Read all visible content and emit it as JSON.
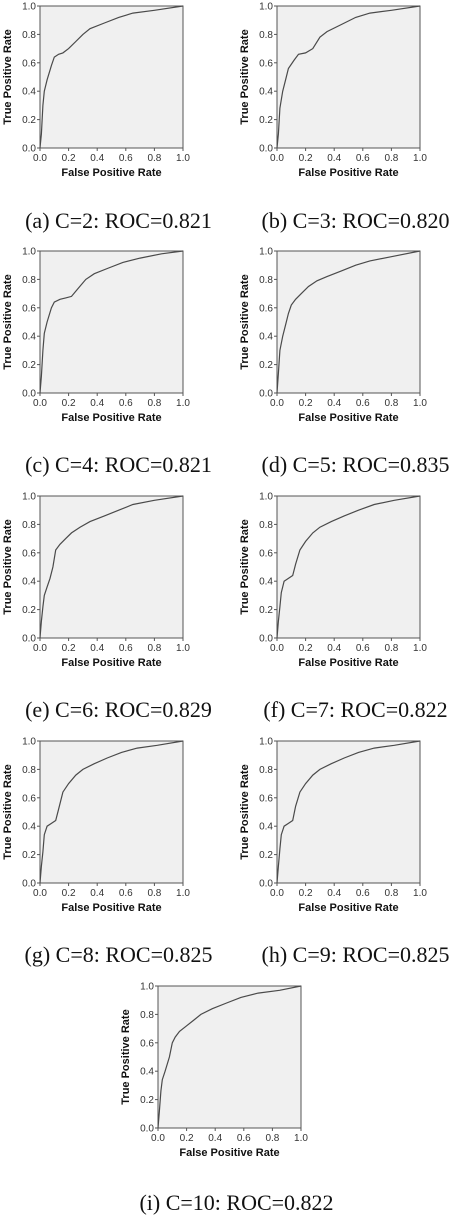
{
  "chart_data": [
    {
      "type": "line",
      "caption": "(a) C=2: ROC=0.821",
      "xlabel": "False Positive Rate",
      "ylabel": "True Positive Rate",
      "xlim": [
        0,
        1
      ],
      "ylim": [
        0,
        1
      ],
      "xticks": [
        "0.0",
        "0.2",
        "0.4",
        "0.6",
        "0.8",
        "1.0"
      ],
      "yticks": [
        "0.0",
        "0.2",
        "0.4",
        "0.6",
        "0.8",
        "1.0"
      ],
      "grid": false,
      "x": [
        0,
        0.01,
        0.02,
        0.03,
        0.05,
        0.08,
        0.1,
        0.13,
        0.16,
        0.2,
        0.25,
        0.3,
        0.35,
        0.45,
        0.55,
        0.65,
        0.8,
        1.0
      ],
      "y": [
        0,
        0.1,
        0.3,
        0.4,
        0.48,
        0.58,
        0.64,
        0.66,
        0.67,
        0.7,
        0.75,
        0.8,
        0.84,
        0.88,
        0.92,
        0.95,
        0.97,
        1.0
      ]
    },
    {
      "type": "line",
      "caption": "(b) C=3: ROC=0.820",
      "xlabel": "False Positive Rate",
      "ylabel": "True Positive Rate",
      "xlim": [
        0,
        1
      ],
      "ylim": [
        0,
        1
      ],
      "xticks": [
        "0.0",
        "0.2",
        "0.4",
        "0.6",
        "0.8",
        "1.0"
      ],
      "yticks": [
        "0.0",
        "0.2",
        "0.4",
        "0.6",
        "0.8",
        "1.0"
      ],
      "grid": false,
      "x": [
        0,
        0.01,
        0.02,
        0.04,
        0.06,
        0.08,
        0.12,
        0.15,
        0.2,
        0.25,
        0.3,
        0.35,
        0.45,
        0.55,
        0.65,
        0.8,
        1.0
      ],
      "y": [
        0,
        0.1,
        0.28,
        0.4,
        0.48,
        0.56,
        0.62,
        0.66,
        0.67,
        0.7,
        0.78,
        0.82,
        0.87,
        0.92,
        0.95,
        0.97,
        1.0
      ]
    },
    {
      "type": "line",
      "caption": "(c) C=4: ROC=0.821",
      "xlabel": "False Positive Rate",
      "ylabel": "True Positive Rate",
      "xlim": [
        0,
        1
      ],
      "ylim": [
        0,
        1
      ],
      "xticks": [
        "0.0",
        "0.2",
        "0.4",
        "0.6",
        "0.8",
        "1.0"
      ],
      "yticks": [
        "0.0",
        "0.2",
        "0.4",
        "0.6",
        "0.8",
        "1.0"
      ],
      "grid": false,
      "x": [
        0,
        0.01,
        0.02,
        0.03,
        0.05,
        0.08,
        0.1,
        0.14,
        0.18,
        0.22,
        0.27,
        0.32,
        0.38,
        0.48,
        0.58,
        0.7,
        0.85,
        1.0
      ],
      "y": [
        0,
        0.12,
        0.3,
        0.42,
        0.5,
        0.6,
        0.64,
        0.66,
        0.67,
        0.68,
        0.74,
        0.8,
        0.84,
        0.88,
        0.92,
        0.95,
        0.98,
        1.0
      ]
    },
    {
      "type": "line",
      "caption": "(d) C=5: ROC=0.835",
      "xlabel": "False Positive Rate",
      "ylabel": "True Positive Rate",
      "xlim": [
        0,
        1
      ],
      "ylim": [
        0,
        1
      ],
      "xticks": [
        "0.0",
        "0.2",
        "0.4",
        "0.6",
        "0.8",
        "1.0"
      ],
      "yticks": [
        "0.0",
        "0.2",
        "0.4",
        "0.6",
        "0.8",
        "1.0"
      ],
      "grid": false,
      "x": [
        0,
        0.01,
        0.02,
        0.04,
        0.06,
        0.08,
        0.1,
        0.13,
        0.17,
        0.22,
        0.28,
        0.35,
        0.45,
        0.55,
        0.65,
        0.8,
        1.0
      ],
      "y": [
        0,
        0.14,
        0.3,
        0.4,
        0.48,
        0.56,
        0.62,
        0.66,
        0.7,
        0.75,
        0.79,
        0.82,
        0.86,
        0.9,
        0.93,
        0.96,
        1.0
      ]
    },
    {
      "type": "line",
      "caption": "(e) C=6: ROC=0.829",
      "xlabel": "False Positive Rate",
      "ylabel": "True Positive Rate",
      "xlim": [
        0,
        1
      ],
      "ylim": [
        0,
        1
      ],
      "xticks": [
        "0.0",
        "0.2",
        "0.4",
        "0.6",
        "0.8",
        "1.0"
      ],
      "yticks": [
        "0.0",
        "0.2",
        "0.4",
        "0.6",
        "0.8",
        "1.0"
      ],
      "grid": false,
      "x": [
        0,
        0.01,
        0.02,
        0.03,
        0.05,
        0.07,
        0.09,
        0.11,
        0.14,
        0.18,
        0.22,
        0.28,
        0.35,
        0.45,
        0.55,
        0.65,
        0.8,
        1.0
      ],
      "y": [
        0,
        0.12,
        0.22,
        0.3,
        0.36,
        0.42,
        0.5,
        0.62,
        0.66,
        0.7,
        0.74,
        0.78,
        0.82,
        0.86,
        0.9,
        0.94,
        0.97,
        1.0
      ]
    },
    {
      "type": "line",
      "caption": "(f) C=7: ROC=0.822",
      "xlabel": "False Positive Rate",
      "ylabel": "True Positive Rate",
      "xlim": [
        0,
        1
      ],
      "ylim": [
        0,
        1
      ],
      "xticks": [
        "0.0",
        "0.2",
        "0.4",
        "0.6",
        "0.8",
        "1.0"
      ],
      "yticks": [
        "0.0",
        "0.2",
        "0.4",
        "0.6",
        "0.8",
        "1.0"
      ],
      "grid": false,
      "x": [
        0,
        0.01,
        0.02,
        0.03,
        0.05,
        0.08,
        0.11,
        0.13,
        0.16,
        0.2,
        0.25,
        0.3,
        0.38,
        0.47,
        0.57,
        0.68,
        0.82,
        1.0
      ],
      "y": [
        0,
        0.12,
        0.22,
        0.32,
        0.4,
        0.42,
        0.44,
        0.52,
        0.62,
        0.68,
        0.74,
        0.78,
        0.82,
        0.86,
        0.9,
        0.94,
        0.97,
        1.0
      ]
    },
    {
      "type": "line",
      "caption": "(g) C=8: ROC=0.825",
      "xlabel": "False Positive Rate",
      "ylabel": "True Positive Rate",
      "xlim": [
        0,
        1
      ],
      "ylim": [
        0,
        1
      ],
      "xticks": [
        "0.0",
        "0.2",
        "0.4",
        "0.6",
        "0.8",
        "1.0"
      ],
      "yticks": [
        "0.0",
        "0.2",
        "0.4",
        "0.6",
        "0.8",
        "1.0"
      ],
      "grid": false,
      "x": [
        0,
        0.01,
        0.02,
        0.03,
        0.05,
        0.08,
        0.11,
        0.13,
        0.16,
        0.2,
        0.25,
        0.3,
        0.38,
        0.47,
        0.57,
        0.68,
        0.82,
        1.0
      ],
      "y": [
        0,
        0.12,
        0.22,
        0.34,
        0.4,
        0.42,
        0.44,
        0.52,
        0.64,
        0.7,
        0.76,
        0.8,
        0.84,
        0.88,
        0.92,
        0.95,
        0.97,
        1.0
      ]
    },
    {
      "type": "line",
      "caption": "(h) C=9: ROC=0.825",
      "xlabel": "False Positive Rate",
      "ylabel": "True Positive Rate",
      "xlim": [
        0,
        1
      ],
      "ylim": [
        0,
        1
      ],
      "xticks": [
        "0.0",
        "0.2",
        "0.4",
        "0.6",
        "0.8",
        "1.0"
      ],
      "yticks": [
        "0.0",
        "0.2",
        "0.4",
        "0.6",
        "0.8",
        "1.0"
      ],
      "grid": false,
      "x": [
        0,
        0.01,
        0.02,
        0.03,
        0.05,
        0.08,
        0.11,
        0.13,
        0.16,
        0.2,
        0.25,
        0.3,
        0.38,
        0.47,
        0.57,
        0.68,
        0.82,
        1.0
      ],
      "y": [
        0,
        0.12,
        0.24,
        0.34,
        0.4,
        0.42,
        0.44,
        0.54,
        0.64,
        0.7,
        0.76,
        0.8,
        0.84,
        0.88,
        0.92,
        0.95,
        0.97,
        1.0
      ]
    },
    {
      "type": "line",
      "caption": "(i) C=10: ROC=0.822",
      "xlabel": "False Positive Rate",
      "ylabel": "True Positive Rate",
      "xlim": [
        0,
        1
      ],
      "ylim": [
        0,
        1
      ],
      "xticks": [
        "0.0",
        "0.2",
        "0.4",
        "0.6",
        "0.8",
        "1.0"
      ],
      "yticks": [
        "0.0",
        "0.2",
        "0.4",
        "0.6",
        "0.8",
        "1.0"
      ],
      "grid": false,
      "x": [
        0,
        0.01,
        0.02,
        0.03,
        0.05,
        0.08,
        0.1,
        0.12,
        0.15,
        0.2,
        0.25,
        0.3,
        0.38,
        0.48,
        0.58,
        0.7,
        0.85,
        1.0
      ],
      "y": [
        0,
        0.12,
        0.26,
        0.34,
        0.4,
        0.5,
        0.6,
        0.64,
        0.68,
        0.72,
        0.76,
        0.8,
        0.84,
        0.88,
        0.92,
        0.95,
        0.97,
        1.0
      ]
    }
  ]
}
